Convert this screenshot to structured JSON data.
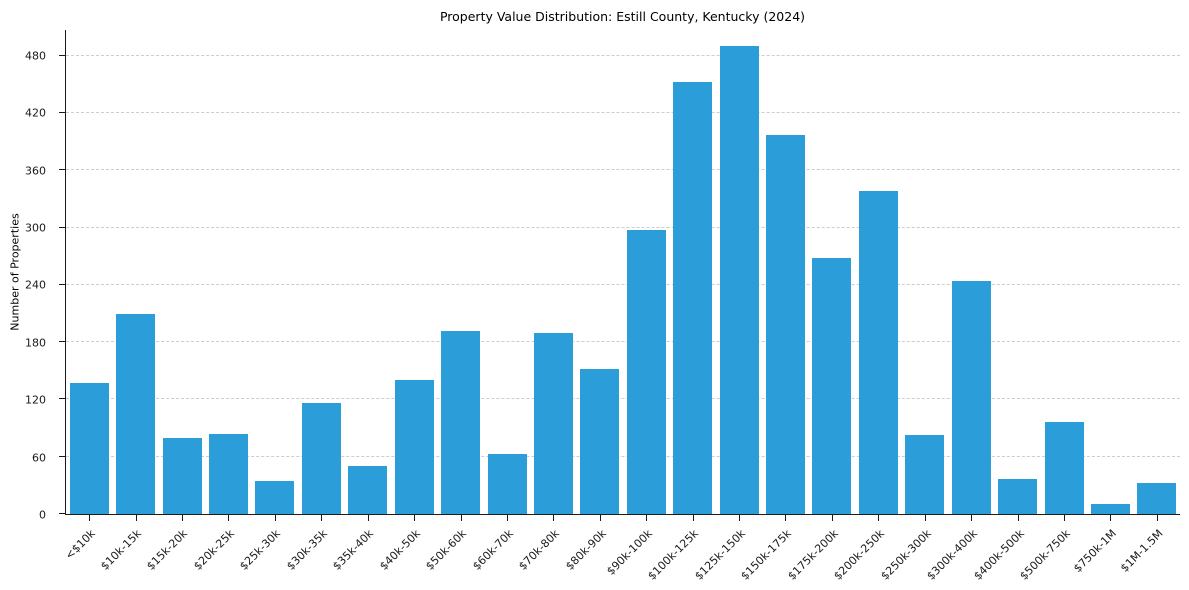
{
  "chart_data": {
    "type": "bar",
    "title": "Property Value Distribution: Estill County, Kentucky (2024)",
    "xlabel": "",
    "ylabel": "Number of Properties",
    "categories": [
      "<$10k",
      "$10k-15k",
      "$15k-20k",
      "$20k-25k",
      "$25k-30k",
      "$30k-35k",
      "$35k-40k",
      "$40k-50k",
      "$50k-60k",
      "$60k-70k",
      "$70k-80k",
      "$80k-90k",
      "$90k-100k",
      "$100k-125k",
      "$125k-150k",
      "$150k-175k",
      "$175k-200k",
      "$200k-250k",
      "$250k-300k",
      "$300k-400k",
      "$400k-500k",
      "$500k-750k",
      "$750k-1M",
      "$1M-1.5M"
    ],
    "values": [
      137,
      210,
      80,
      84,
      35,
      116,
      50,
      140,
      192,
      63,
      190,
      152,
      297,
      453,
      490,
      397,
      268,
      338,
      83,
      244,
      37,
      96,
      11,
      32
    ],
    "ylim": [
      0,
      507
    ],
    "yticks": [
      0,
      60,
      120,
      180,
      240,
      300,
      360,
      420,
      480
    ],
    "grid": "horizontal-dashed",
    "legend": "none",
    "bar_color": "#2b9dd8",
    "background": "#ffffff"
  }
}
